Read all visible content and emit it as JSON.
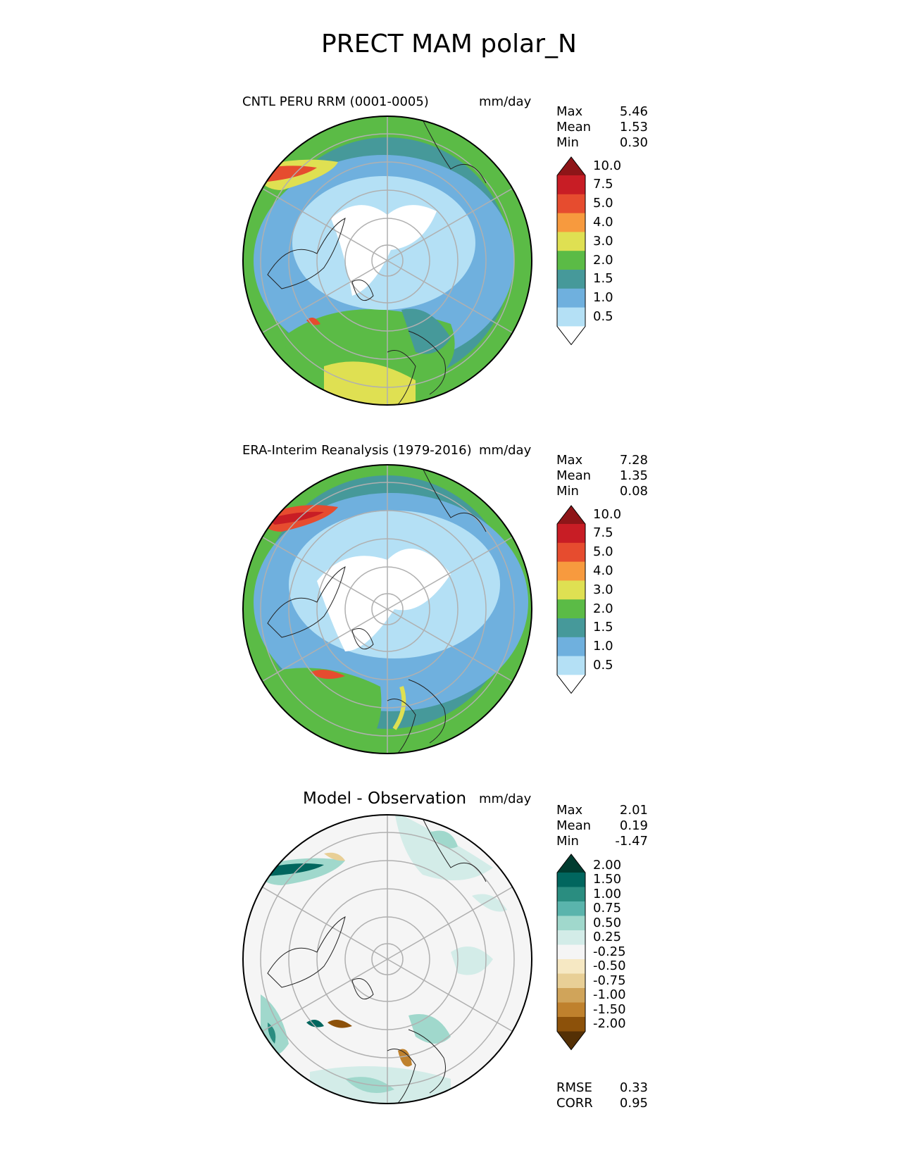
{
  "title": "PRECT MAM polar_N",
  "panels": [
    {
      "title": "CNTL PERU RRM (0001-0005)",
      "units": "mm/day",
      "stats": {
        "max_label": "Max",
        "max": "5.46",
        "mean_label": "Mean",
        "mean": "1.53",
        "min_label": "Min",
        "min": "0.30"
      },
      "colorbar": {
        "colors": [
          "#ffffff",
          "#b4e0f5",
          "#6fb0de",
          "#46999a",
          "#5bbb46",
          "#dfe052",
          "#f79a3e",
          "#e64c2f",
          "#c81d25",
          "#8e1518"
        ],
        "labels": [
          "0.5",
          "1.0",
          "1.5",
          "2.0",
          "3.0",
          "4.0",
          "5.0",
          "7.5",
          "10.0"
        ]
      }
    },
    {
      "title": "ERA-Interim Reanalysis (1979-2016)",
      "units": "mm/day",
      "stats": {
        "max_label": "Max",
        "max": "7.28",
        "mean_label": "Mean",
        "mean": "1.35",
        "min_label": "Min",
        "min": "0.08"
      },
      "colorbar": {
        "colors": [
          "#ffffff",
          "#b4e0f5",
          "#6fb0de",
          "#46999a",
          "#5bbb46",
          "#dfe052",
          "#f79a3e",
          "#e64c2f",
          "#c81d25",
          "#8e1518"
        ],
        "labels": [
          "0.5",
          "1.0",
          "1.5",
          "2.0",
          "3.0",
          "4.0",
          "5.0",
          "7.5",
          "10.0"
        ]
      }
    },
    {
      "title": "Model - Observation",
      "units": "mm/day",
      "stats": {
        "max_label": "Max",
        "max": "2.01",
        "mean_label": "Mean",
        "mean": "0.19",
        "min_label": "Min",
        "min": "-1.47"
      },
      "colorbar": {
        "colors": [
          "#543005",
          "#8c510a",
          "#bf812d",
          "#d0a45a",
          "#e8cf96",
          "#f6e8c3",
          "#f5f5f5",
          "#d3ece8",
          "#a0d8cc",
          "#5ab4ac",
          "#2a8d80",
          "#01665e",
          "#003c30"
        ],
        "labels": [
          "-2.00",
          "-1.50",
          "-1.00",
          "-0.75",
          "-0.50",
          "-0.25",
          "0.25",
          "0.50",
          "0.75",
          "1.00",
          "1.50",
          "2.00"
        ]
      },
      "metrics": {
        "rmse_label": "RMSE",
        "rmse": "0.33",
        "corr_label": "CORR",
        "corr": "0.95"
      }
    }
  ]
}
